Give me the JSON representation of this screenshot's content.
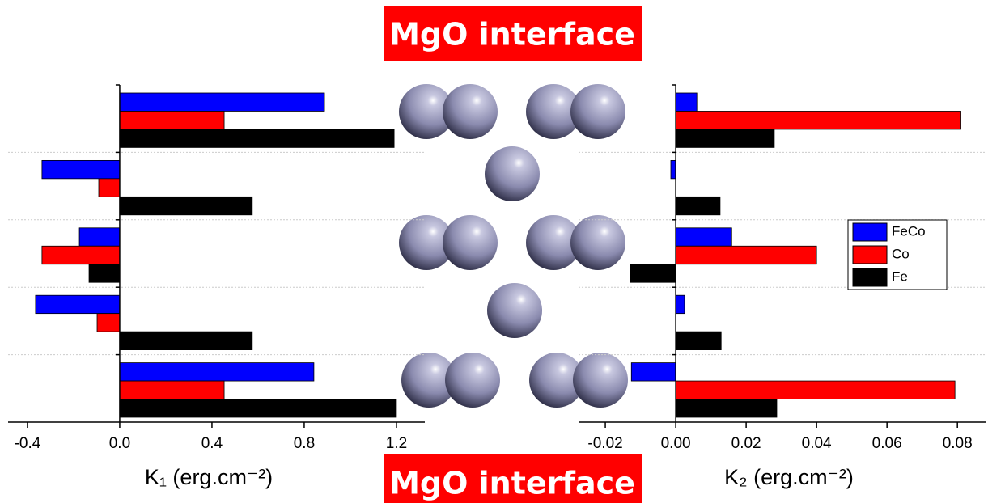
{
  "chart_data": [
    {
      "type": "barh",
      "xlabel": "K₁ (erg.cm⁻²)",
      "categories": [
        null,
        null,
        null,
        null,
        null
      ],
      "series": [
        {
          "name": "FeCo",
          "color": "#0000ff",
          "values": [
            0.888,
            -0.337,
            -0.175,
            -0.365,
            0.842
          ]
        },
        {
          "name": "Co",
          "color": "#ff0000",
          "values": [
            0.453,
            -0.091,
            -0.337,
            -0.098,
            0.453
          ]
        },
        {
          "name": "Fe",
          "color": "#000000",
          "values": [
            1.19,
            0.575,
            -0.133,
            0.575,
            1.2
          ]
        }
      ],
      "xlim": [
        -0.484,
        1.323
      ],
      "xticks": [
        -0.4,
        {
          "value": 0,
          "label": "0.0"
        },
        0.4,
        0.8,
        1.2
      ],
      "grid": true
    },
    {
      "type": "barh",
      "xlabel": "K₂ (erg.cm⁻²)",
      "categories": [
        null,
        null,
        null,
        null,
        null
      ],
      "series": [
        {
          "name": "FeCo",
          "color": "#0000ff",
          "values": [
            0.006,
            -0.0014,
            0.0159,
            0.0025,
            -0.0126
          ]
        },
        {
          "name": "Co",
          "color": "#ff0000",
          "values": [
            0.081,
            0,
            0.04,
            0,
            0.0793
          ]
        },
        {
          "name": "Fe",
          "color": "#000000",
          "values": [
            0.028,
            0.0126,
            -0.0129,
            0.0129,
            0.0287
          ]
        }
      ],
      "xlim": [
        -0.0276,
        0.088
      ],
      "xticks": [
        -0.02,
        {
          "value": 0,
          "label": "0.00"
        },
        0.02,
        0.04,
        0.06,
        0.08
      ],
      "grid": true,
      "legend": "right"
    }
  ],
  "annotations": [
    "MgO interface",
    "MgO interface"
  ]
}
